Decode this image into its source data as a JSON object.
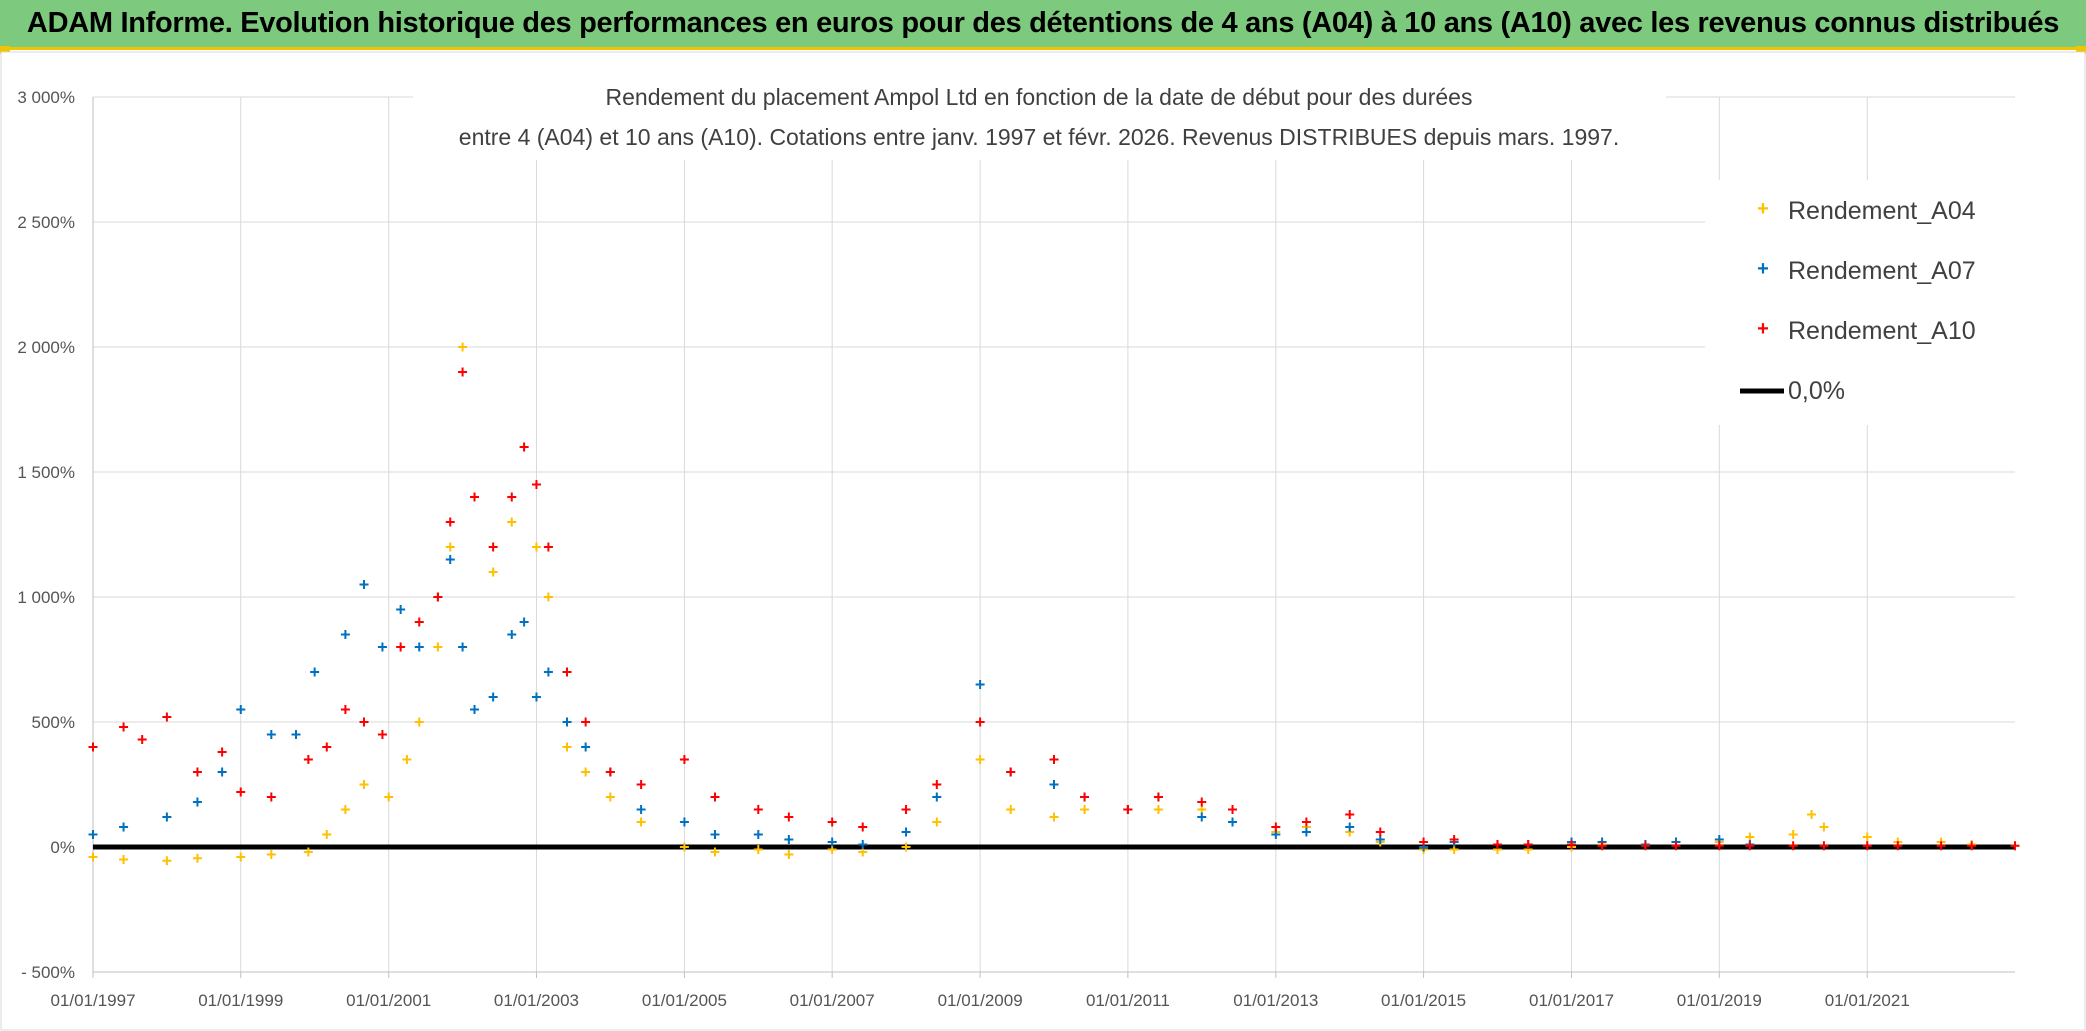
{
  "banner": {
    "title": "ADAM Informe. Evolution historique des performances en euros pour des détentions de 4 ans (A04) à 10 ans (A10) avec les revenus connus distribués"
  },
  "chart_data": {
    "type": "scatter",
    "title_lines": [
      "Rendement du placement Ampol Ltd en fonction de la date de début pour des durées",
      "entre 4 (A04) et 10 ans (A10). Cotations entre janv. 1997 et févr. 2026. Revenus DISTRIBUES depuis mars. 1997."
    ],
    "xlabel": "",
    "ylabel": "",
    "x_axis": {
      "type": "date",
      "min": "1997-01-01",
      "max": "2023-01-01",
      "tick_labels": [
        "01/01/1997",
        "01/01/1999",
        "01/01/2001",
        "01/01/2003",
        "01/01/2005",
        "01/01/2007",
        "01/01/2009",
        "01/01/2011",
        "01/01/2013",
        "01/01/2015",
        "01/01/2017",
        "01/01/2019",
        "01/01/2021"
      ]
    },
    "y_axis": {
      "min": -500,
      "max": 3000,
      "unit": "%",
      "tick_values": [
        3000,
        2500,
        2000,
        1500,
        1000,
        500,
        0,
        -500
      ],
      "tick_labels": [
        "3 000%",
        "2 500%",
        "2 000%",
        "1 500%",
        "1 000%",
        "500%",
        "0%",
        "- 500%"
      ]
    },
    "grid": true,
    "legend_position": "top-right",
    "legend": [
      "Rendement_A04",
      "Rendement_A07",
      "Rendement_A10",
      "0,0%"
    ],
    "series": [
      {
        "name": "Rendement_A04",
        "color": "#ffc000",
        "marker": "plus",
        "points": [
          [
            "1997-01-01",
            -40
          ],
          [
            "1997-06-01",
            -50
          ],
          [
            "1998-01-01",
            -55
          ],
          [
            "1998-06-01",
            -45
          ],
          [
            "1999-01-01",
            -40
          ],
          [
            "1999-06-01",
            -30
          ],
          [
            "1999-12-01",
            -20
          ],
          [
            "2000-03-01",
            50
          ],
          [
            "2000-06-01",
            150
          ],
          [
            "2000-09-01",
            250
          ],
          [
            "2001-01-01",
            200
          ],
          [
            "2001-04-01",
            350
          ],
          [
            "2001-06-01",
            500
          ],
          [
            "2001-09-01",
            800
          ],
          [
            "2001-11-01",
            1200
          ],
          [
            "2002-01-01",
            2000
          ],
          [
            "2002-03-01",
            1400
          ],
          [
            "2002-06-01",
            1100
          ],
          [
            "2002-09-01",
            1300
          ],
          [
            "2002-11-01",
            1600
          ],
          [
            "2003-01-01",
            1200
          ],
          [
            "2003-03-01",
            1000
          ],
          [
            "2003-06-01",
            400
          ],
          [
            "2003-09-01",
            300
          ],
          [
            "2004-01-01",
            200
          ],
          [
            "2004-06-01",
            100
          ],
          [
            "2005-01-01",
            0
          ],
          [
            "2005-06-01",
            -20
          ],
          [
            "2006-01-01",
            -10
          ],
          [
            "2006-06-01",
            -30
          ],
          [
            "2007-01-01",
            -10
          ],
          [
            "2007-06-01",
            -20
          ],
          [
            "2008-01-01",
            0
          ],
          [
            "2008-06-01",
            100
          ],
          [
            "2009-01-01",
            350
          ],
          [
            "2009-06-01",
            150
          ],
          [
            "2010-01-01",
            120
          ],
          [
            "2010-06-01",
            150
          ],
          [
            "2011-01-01",
            150
          ],
          [
            "2011-06-01",
            150
          ],
          [
            "2012-01-01",
            150
          ],
          [
            "2012-06-01",
            100
          ],
          [
            "2013-01-01",
            60
          ],
          [
            "2013-06-01",
            80
          ],
          [
            "2014-01-01",
            60
          ],
          [
            "2014-06-01",
            20
          ],
          [
            "2015-01-01",
            -10
          ],
          [
            "2015-06-01",
            -10
          ],
          [
            "2016-01-01",
            -10
          ],
          [
            "2016-06-01",
            -10
          ],
          [
            "2017-01-01",
            0
          ],
          [
            "2017-06-01",
            10
          ],
          [
            "2018-01-01",
            10
          ],
          [
            "2018-06-01",
            20
          ],
          [
            "2019-01-01",
            20
          ],
          [
            "2019-06-01",
            40
          ],
          [
            "2020-01-01",
            50
          ],
          [
            "2020-04-01",
            130
          ],
          [
            "2020-06-01",
            80
          ],
          [
            "2021-01-01",
            40
          ],
          [
            "2021-06-01",
            20
          ],
          [
            "2022-01-01",
            20
          ],
          [
            "2022-06-01",
            10
          ],
          [
            "2023-01-01",
            5
          ]
        ]
      },
      {
        "name": "Rendement_A07",
        "color": "#0070c0",
        "marker": "plus",
        "points": [
          [
            "1997-01-01",
            50
          ],
          [
            "1997-06-01",
            80
          ],
          [
            "1998-01-01",
            120
          ],
          [
            "1998-06-01",
            180
          ],
          [
            "1998-10-01",
            300
          ],
          [
            "1999-01-01",
            550
          ],
          [
            "1999-06-01",
            450
          ],
          [
            "1999-10-01",
            450
          ],
          [
            "2000-01-01",
            700
          ],
          [
            "2000-06-01",
            850
          ],
          [
            "2000-09-01",
            1050
          ],
          [
            "2000-12-01",
            800
          ],
          [
            "2001-03-01",
            950
          ],
          [
            "2001-06-01",
            800
          ],
          [
            "2001-09-01",
            1000
          ],
          [
            "2001-11-01",
            1150
          ],
          [
            "2002-01-01",
            800
          ],
          [
            "2002-03-01",
            550
          ],
          [
            "2002-06-01",
            600
          ],
          [
            "2002-09-01",
            850
          ],
          [
            "2002-11-01",
            900
          ],
          [
            "2003-01-01",
            600
          ],
          [
            "2003-03-01",
            700
          ],
          [
            "2003-06-01",
            500
          ],
          [
            "2003-09-01",
            400
          ],
          [
            "2004-01-01",
            300
          ],
          [
            "2004-06-01",
            150
          ],
          [
            "2005-01-01",
            100
          ],
          [
            "2005-06-01",
            50
          ],
          [
            "2006-01-01",
            50
          ],
          [
            "2006-06-01",
            30
          ],
          [
            "2007-01-01",
            20
          ],
          [
            "2007-06-01",
            10
          ],
          [
            "2008-01-01",
            60
          ],
          [
            "2008-06-01",
            200
          ],
          [
            "2009-01-01",
            650
          ],
          [
            "2009-06-01",
            300
          ],
          [
            "2010-01-01",
            250
          ],
          [
            "2010-06-01",
            200
          ],
          [
            "2011-01-01",
            150
          ],
          [
            "2011-06-01",
            200
          ],
          [
            "2012-01-01",
            120
          ],
          [
            "2012-06-01",
            100
          ],
          [
            "2013-01-01",
            50
          ],
          [
            "2013-06-01",
            60
          ],
          [
            "2014-01-01",
            80
          ],
          [
            "2014-06-01",
            30
          ],
          [
            "2015-01-01",
            0
          ],
          [
            "2015-06-01",
            20
          ],
          [
            "2016-01-01",
            10
          ],
          [
            "2016-06-01",
            10
          ],
          [
            "2017-01-01",
            20
          ],
          [
            "2017-06-01",
            20
          ],
          [
            "2018-01-01",
            10
          ],
          [
            "2018-06-01",
            20
          ],
          [
            "2019-01-01",
            30
          ],
          [
            "2019-06-01",
            10
          ]
        ]
      },
      {
        "name": "Rendement_A10",
        "color": "#ff0000",
        "marker": "plus",
        "points": [
          [
            "1997-01-01",
            400
          ],
          [
            "1997-06-01",
            480
          ],
          [
            "1997-09-01",
            430
          ],
          [
            "1998-01-01",
            520
          ],
          [
            "1998-06-01",
            300
          ],
          [
            "1998-10-01",
            380
          ],
          [
            "1999-01-01",
            220
          ],
          [
            "1999-06-01",
            200
          ],
          [
            "1999-12-01",
            350
          ],
          [
            "2000-03-01",
            400
          ],
          [
            "2000-06-01",
            550
          ],
          [
            "2000-09-01",
            500
          ],
          [
            "2000-12-01",
            450
          ],
          [
            "2001-03-01",
            800
          ],
          [
            "2001-06-01",
            900
          ],
          [
            "2001-09-01",
            1000
          ],
          [
            "2001-11-01",
            1300
          ],
          [
            "2002-01-01",
            1900
          ],
          [
            "2002-03-01",
            1400
          ],
          [
            "2002-06-01",
            1200
          ],
          [
            "2002-09-01",
            1400
          ],
          [
            "2002-11-01",
            1600
          ],
          [
            "2003-01-01",
            1450
          ],
          [
            "2003-03-01",
            1200
          ],
          [
            "2003-06-01",
            700
          ],
          [
            "2003-09-01",
            500
          ],
          [
            "2004-01-01",
            300
          ],
          [
            "2004-06-01",
            250
          ],
          [
            "2005-01-01",
            350
          ],
          [
            "2005-06-01",
            200
          ],
          [
            "2006-01-01",
            150
          ],
          [
            "2006-06-01",
            120
          ],
          [
            "2007-01-01",
            100
          ],
          [
            "2007-06-01",
            80
          ],
          [
            "2008-01-01",
            150
          ],
          [
            "2008-06-01",
            250
          ],
          [
            "2009-01-01",
            500
          ],
          [
            "2009-06-01",
            300
          ],
          [
            "2010-01-01",
            350
          ],
          [
            "2010-06-01",
            200
          ],
          [
            "2011-01-01",
            150
          ],
          [
            "2011-06-01",
            200
          ],
          [
            "2012-01-01",
            180
          ],
          [
            "2012-06-01",
            150
          ],
          [
            "2013-01-01",
            80
          ],
          [
            "2013-06-01",
            100
          ],
          [
            "2014-01-01",
            130
          ],
          [
            "2014-06-01",
            60
          ],
          [
            "2015-01-01",
            20
          ],
          [
            "2015-06-01",
            30
          ],
          [
            "2016-01-01",
            10
          ],
          [
            "2016-06-01",
            10
          ],
          [
            "2017-01-01",
            10
          ],
          [
            "2017-06-01",
            5
          ],
          [
            "2018-01-01",
            5
          ],
          [
            "2018-06-01",
            5
          ],
          [
            "2019-01-01",
            5
          ],
          [
            "2019-06-01",
            5
          ],
          [
            "2020-01-01",
            5
          ],
          [
            "2020-06-01",
            5
          ],
          [
            "2021-01-01",
            5
          ],
          [
            "2021-06-01",
            5
          ],
          [
            "2022-01-01",
            5
          ],
          [
            "2022-06-01",
            5
          ],
          [
            "2023-01-01",
            5
          ]
        ]
      }
    ],
    "reference_line": {
      "name": "0,0%",
      "value": 0,
      "color": "#000000"
    }
  }
}
